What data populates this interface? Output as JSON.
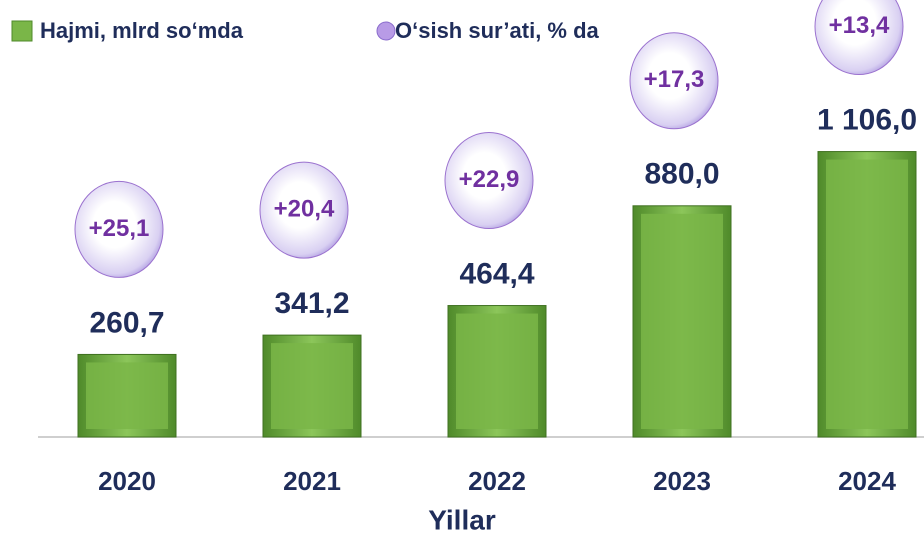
{
  "chart_data": {
    "type": "bar",
    "categories": [
      "2020",
      "2021",
      "2022",
      "2023",
      "2024"
    ],
    "x_label": "Yillar",
    "series": [
      {
        "name": "Hajmi, mlrd so‘mda",
        "color": "#7ab648",
        "values": [
          260.7,
          341.2,
          464.4,
          880.0,
          1106.0
        ],
        "value_labels": [
          "260,7",
          "341,2",
          "464,4",
          "880,0",
          "1 106,0"
        ]
      },
      {
        "name": "O‘sish sur’ati, % da",
        "color": "#9b72cf",
        "values": [
          25.1,
          20.4,
          22.9,
          17.3,
          13.4
        ],
        "value_labels": [
          "+25,1",
          "+20,4",
          "+22,9",
          "+17,3",
          "+13,4"
        ]
      }
    ]
  }
}
